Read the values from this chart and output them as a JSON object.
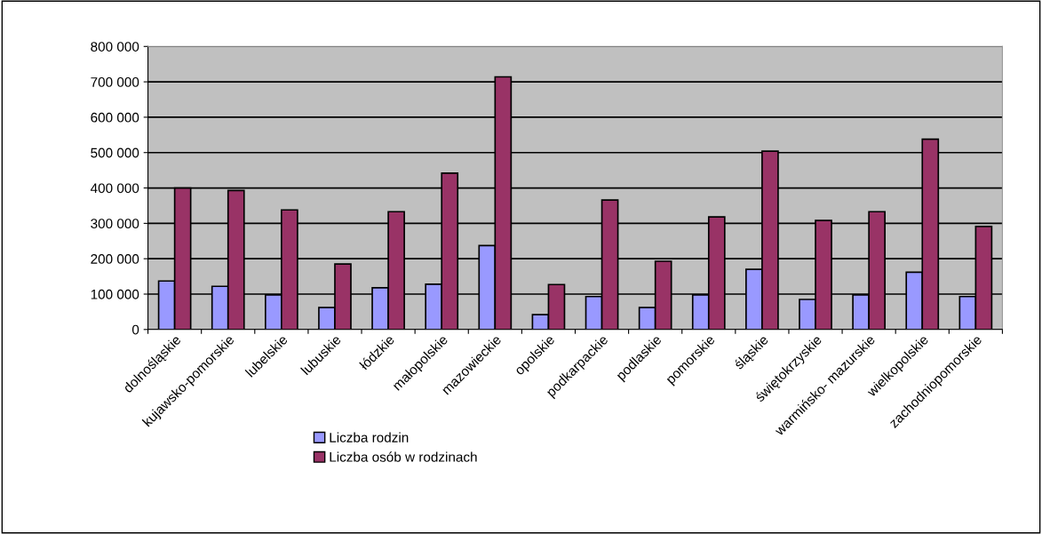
{
  "chart_data": {
    "type": "bar",
    "categories": [
      "dolnośląskie",
      "kujawsko-pomorskie",
      "lubelskie",
      "lubuskie",
      "łódzkie",
      "małopolskie",
      "mazowieckie",
      "opolskie",
      "podkarpackie",
      "podlaskie",
      "pomorskie",
      "śląskie",
      "świętokrzyskie",
      "warmińsko- mazurskie",
      "wielkopolskie",
      "zachodniopomorskie"
    ],
    "series": [
      {
        "name": "Liczba rodzin",
        "color": "#9999ff",
        "values": [
          137000,
          122000,
          98000,
          62000,
          118000,
          128000,
          237000,
          42000,
          93000,
          62000,
          98000,
          170000,
          85000,
          98000,
          162000,
          93000
        ]
      },
      {
        "name": "Liczba osób w rodzinach",
        "color": "#993366",
        "values": [
          400000,
          393000,
          338000,
          185000,
          333000,
          442000,
          714000,
          127000,
          366000,
          193000,
          318000,
          504000,
          308000,
          333000,
          538000,
          291000
        ]
      }
    ],
    "ylim": [
      0,
      800000
    ],
    "yticks": [
      {
        "value": 0,
        "label": "0"
      },
      {
        "value": 100000,
        "label": "100 000"
      },
      {
        "value": 200000,
        "label": "200 000"
      },
      {
        "value": 300000,
        "label": "300 000"
      },
      {
        "value": 400000,
        "label": "400 000"
      },
      {
        "value": 500000,
        "label": "500 000"
      },
      {
        "value": 600000,
        "label": "600 000"
      },
      {
        "value": 700000,
        "label": "700 000"
      },
      {
        "value": 800000,
        "label": "800 000"
      }
    ],
    "grid": "y",
    "legend": "bottom"
  }
}
